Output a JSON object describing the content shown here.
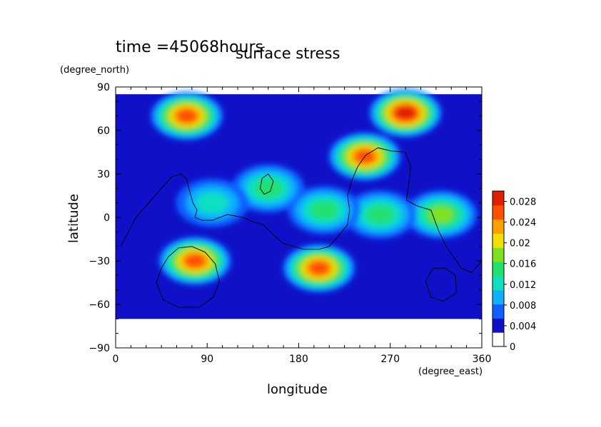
{
  "chart_data": {
    "type": "heatmap",
    "time_label": "time =45068hours",
    "title": "surface stress",
    "xlabel": "longitude",
    "ylabel": "latitude",
    "x_units": "(degree_east)",
    "y_units": "(degree_north)",
    "xlim": [
      0,
      360
    ],
    "ylim": [
      -90,
      90
    ],
    "x_ticks": [
      0,
      90,
      180,
      270,
      360
    ],
    "y_ticks": [
      -90,
      -60,
      -30,
      0,
      30,
      60,
      90
    ],
    "colorbar": {
      "ticks": [
        0,
        0.004,
        0.008,
        0.012,
        0.016,
        0.02,
        0.024,
        0.028
      ],
      "tick_labels": [
        "0",
        "0.004",
        "0.008",
        "0.012",
        "0.016",
        "0.02",
        "0.024",
        "0.028"
      ],
      "range": [
        0,
        0.03
      ],
      "colors": [
        "#ffffff",
        "#1010c8",
        "#1060ff",
        "#10b0ff",
        "#10e0c0",
        "#20e070",
        "#80e020",
        "#f0e000",
        "#ffa000",
        "#ff5000",
        "#e02000"
      ]
    },
    "data_range": [
      0,
      0.03
    ],
    "field_lat_range": [
      -70,
      85
    ],
    "hotspots": [
      {
        "lon": 70,
        "lat": 70,
        "value": 0.028
      },
      {
        "lon": 285,
        "lat": 72,
        "value": 0.03
      },
      {
        "lon": 245,
        "lat": 42,
        "value": 0.028
      },
      {
        "lon": 78,
        "lat": -30,
        "value": 0.026
      },
      {
        "lon": 200,
        "lat": -35,
        "value": 0.026
      },
      {
        "lon": 320,
        "lat": 2,
        "value": 0.018
      },
      {
        "lon": 260,
        "lat": 2,
        "value": 0.016
      },
      {
        "lon": 150,
        "lat": 20,
        "value": 0.014
      },
      {
        "lon": 205,
        "lat": 5,
        "value": 0.014
      },
      {
        "lon": 95,
        "lat": 10,
        "value": 0.012
      }
    ],
    "continent_outlines": [
      [
        [
          5,
          -20
        ],
        [
          20,
          0
        ],
        [
          35,
          12
        ],
        [
          45,
          20
        ],
        [
          55,
          28
        ],
        [
          65,
          30
        ],
        [
          70,
          26
        ],
        [
          72,
          20
        ],
        [
          76,
          10
        ],
        [
          80,
          5
        ],
        [
          78,
          0
        ],
        [
          85,
          -2
        ],
        [
          95,
          -2
        ],
        [
          110,
          2
        ],
        [
          125,
          0
        ],
        [
          135,
          -3
        ],
        [
          145,
          -5
        ],
        [
          155,
          -12
        ],
        [
          165,
          -18
        ],
        [
          175,
          -20
        ],
        [
          185,
          -22
        ],
        [
          200,
          -22
        ],
        [
          210,
          -20
        ],
        [
          220,
          -12
        ],
        [
          228,
          -5
        ],
        [
          230,
          5
        ],
        [
          228,
          15
        ],
        [
          232,
          25
        ],
        [
          238,
          35
        ],
        [
          246,
          43
        ],
        [
          258,
          48
        ],
        [
          270,
          46
        ],
        [
          285,
          45
        ],
        [
          290,
          35
        ],
        [
          288,
          22
        ],
        [
          286,
          12
        ],
        [
          296,
          8
        ],
        [
          310,
          5
        ],
        [
          318,
          -10
        ],
        [
          325,
          -20
        ],
        [
          340,
          -35
        ],
        [
          350,
          -38
        ],
        [
          360,
          -30
        ]
      ],
      [
        [
          40,
          -45
        ],
        [
          45,
          -35
        ],
        [
          52,
          -27
        ],
        [
          62,
          -21
        ],
        [
          75,
          -20
        ],
        [
          88,
          -24
        ],
        [
          98,
          -32
        ],
        [
          102,
          -44
        ],
        [
          96,
          -55
        ],
        [
          82,
          -62
        ],
        [
          62,
          -62
        ],
        [
          47,
          -57
        ],
        [
          40,
          -45
        ]
      ],
      [
        [
          142,
          20
        ],
        [
          144,
          27
        ],
        [
          150,
          30
        ],
        [
          155,
          25
        ],
        [
          152,
          18
        ],
        [
          146,
          16
        ],
        [
          142,
          20
        ]
      ],
      [
        [
          305,
          -44
        ],
        [
          312,
          -35
        ],
        [
          324,
          -35
        ],
        [
          334,
          -40
        ],
        [
          335,
          -52
        ],
        [
          322,
          -58
        ],
        [
          310,
          -55
        ],
        [
          305,
          -44
        ]
      ]
    ]
  }
}
